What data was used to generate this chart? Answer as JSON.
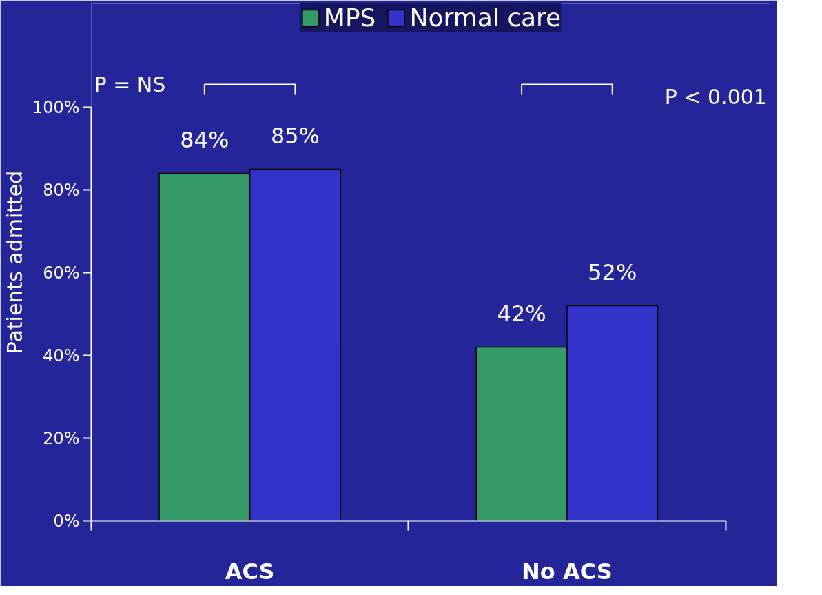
{
  "chart_data": {
    "type": "bar",
    "categories": [
      "ACS",
      "No ACS"
    ],
    "ylabel": "Patients admitted",
    "ylim": [
      0,
      100
    ],
    "yticks": [
      {
        "value": 0,
        "label": "0%"
      },
      {
        "value": 20,
        "label": "20%"
      },
      {
        "value": 40,
        "label": "40%"
      },
      {
        "value": 60,
        "label": "60%"
      },
      {
        "value": 80,
        "label": "80%"
      },
      {
        "value": 100,
        "label": "100%"
      }
    ],
    "series": [
      {
        "name": "MPS",
        "color": "#339966",
        "values": [
          84,
          42
        ],
        "value_labels": [
          "84%",
          "42%"
        ]
      },
      {
        "name": "Normal care",
        "color": "#3333cc",
        "values": [
          85,
          52
        ],
        "value_labels": [
          "85%",
          "52%"
        ]
      }
    ],
    "annotations": [
      "P = NS",
      "P < 0.001"
    ],
    "legend": "top",
    "grid": false
  }
}
